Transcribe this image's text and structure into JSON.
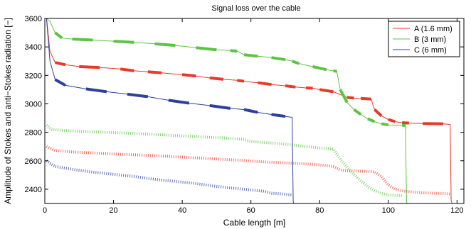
{
  "chart_data": {
    "type": "line",
    "title": "Signal loss over the cable",
    "xlabel": "Cable length [m]",
    "ylabel": "Amplitude of Stokes and anti−Stokes radiation [−]",
    "xlim": [
      0,
      122
    ],
    "ylim": [
      2300,
      3600
    ],
    "xticks": [
      0,
      20,
      40,
      60,
      80,
      100,
      120
    ],
    "yticks": [
      2400,
      2600,
      2800,
      3000,
      3200,
      3400,
      3600
    ],
    "grid": false,
    "legend": "top-right",
    "series": [
      {
        "name": "A (1.6 mm)",
        "color": "#e8392a",
        "stokes": [
          [
            0.5,
            3600
          ],
          [
            1.5,
            3370
          ],
          [
            3,
            3290
          ],
          [
            6,
            3275
          ],
          [
            10,
            3262
          ],
          [
            16,
            3255
          ],
          [
            22,
            3245
          ],
          [
            26,
            3232
          ],
          [
            30,
            3225
          ],
          [
            34,
            3218
          ],
          [
            40,
            3205
          ],
          [
            44,
            3195
          ],
          [
            48,
            3182
          ],
          [
            52,
            3172
          ],
          [
            56,
            3165
          ],
          [
            58,
            3158
          ],
          [
            62,
            3148
          ],
          [
            66,
            3136
          ],
          [
            70,
            3127
          ],
          [
            73,
            3118
          ],
          [
            76,
            3112
          ],
          [
            78,
            3110
          ],
          [
            80,
            3100
          ],
          [
            84,
            3085
          ],
          [
            88,
            3045
          ],
          [
            90,
            3040
          ],
          [
            92,
            3038
          ],
          [
            95,
            3033
          ],
          [
            96,
            2960
          ],
          [
            98,
            2915
          ],
          [
            100,
            2890
          ],
          [
            102,
            2875
          ],
          [
            104,
            2868
          ],
          [
            106,
            2865
          ],
          [
            110,
            2862
          ],
          [
            116,
            2860
          ],
          [
            118,
            2855
          ],
          [
            118.3,
            2320
          ],
          [
            118.6,
            2300
          ]
        ],
        "anti_stokes": [
          [
            0.5,
            2700
          ],
          [
            3,
            2672
          ],
          [
            8,
            2662
          ],
          [
            14,
            2655
          ],
          [
            22,
            2645
          ],
          [
            30,
            2638
          ],
          [
            38,
            2628
          ],
          [
            46,
            2618
          ],
          [
            52,
            2610
          ],
          [
            58,
            2602
          ],
          [
            64,
            2592
          ],
          [
            70,
            2585
          ],
          [
            76,
            2578
          ],
          [
            80,
            2572
          ],
          [
            84,
            2560
          ],
          [
            86,
            2535
          ],
          [
            88,
            2530
          ],
          [
            92,
            2527
          ],
          [
            96,
            2522
          ],
          [
            98,
            2490
          ],
          [
            100,
            2430
          ],
          [
            102,
            2400
          ],
          [
            105,
            2385
          ],
          [
            110,
            2375
          ],
          [
            116,
            2370
          ],
          [
            118,
            2366
          ]
        ]
      },
      {
        "name": "B (3 mm)",
        "color": "#5cc443",
        "stokes": [
          [
            0.5,
            3600
          ],
          [
            1.5,
            3580
          ],
          [
            3,
            3500
          ],
          [
            5,
            3462
          ],
          [
            8,
            3455
          ],
          [
            14,
            3448
          ],
          [
            20,
            3440
          ],
          [
            26,
            3432
          ],
          [
            32,
            3422
          ],
          [
            38,
            3410
          ],
          [
            44,
            3395
          ],
          [
            50,
            3380
          ],
          [
            54,
            3375
          ],
          [
            56,
            3370
          ],
          [
            58,
            3345
          ],
          [
            62,
            3335
          ],
          [
            66,
            3325
          ],
          [
            70,
            3310
          ],
          [
            72,
            3300
          ],
          [
            74,
            3283
          ],
          [
            78,
            3262
          ],
          [
            82,
            3240
          ],
          [
            84,
            3232
          ],
          [
            85,
            3228
          ],
          [
            86,
            3100
          ],
          [
            88,
            3010
          ],
          [
            90,
            2960
          ],
          [
            92,
            2925
          ],
          [
            94,
            2895
          ],
          [
            96,
            2875
          ],
          [
            98,
            2860
          ],
          [
            100,
            2852
          ],
          [
            104,
            2850
          ],
          [
            105,
            2848
          ],
          [
            105.3,
            2310
          ],
          [
            105.6,
            2300
          ]
        ],
        "anti_stokes": [
          [
            0.5,
            2850
          ],
          [
            2,
            2820
          ],
          [
            6,
            2812
          ],
          [
            12,
            2805
          ],
          [
            20,
            2798
          ],
          [
            28,
            2790
          ],
          [
            36,
            2780
          ],
          [
            44,
            2770
          ],
          [
            52,
            2760
          ],
          [
            58,
            2750
          ],
          [
            60,
            2735
          ],
          [
            66,
            2725
          ],
          [
            72,
            2712
          ],
          [
            76,
            2700
          ],
          [
            80,
            2690
          ],
          [
            84,
            2682
          ],
          [
            86,
            2612
          ],
          [
            88,
            2555
          ],
          [
            90,
            2505
          ],
          [
            92,
            2460
          ],
          [
            94,
            2420
          ],
          [
            96,
            2390
          ],
          [
            98,
            2370
          ],
          [
            100,
            2360
          ],
          [
            104,
            2355
          ]
        ]
      },
      {
        "name": "C (6 mm)",
        "color": "#2e3f9e",
        "stokes": [
          [
            0.5,
            3600
          ],
          [
            1.5,
            3300
          ],
          [
            3,
            3170
          ],
          [
            6,
            3130
          ],
          [
            12,
            3105
          ],
          [
            18,
            3085
          ],
          [
            24,
            3068
          ],
          [
            30,
            3050
          ],
          [
            36,
            3025
          ],
          [
            42,
            3005
          ],
          [
            48,
            2988
          ],
          [
            54,
            2968
          ],
          [
            58,
            2960
          ],
          [
            62,
            2940
          ],
          [
            66,
            2925
          ],
          [
            70,
            2912
          ],
          [
            72,
            2905
          ],
          [
            72.3,
            2310
          ],
          [
            72.6,
            2300
          ]
        ],
        "anti_stokes": [
          [
            0.5,
            2600
          ],
          [
            3,
            2560
          ],
          [
            8,
            2540
          ],
          [
            14,
            2520
          ],
          [
            20,
            2505
          ],
          [
            26,
            2490
          ],
          [
            32,
            2470
          ],
          [
            38,
            2455
          ],
          [
            44,
            2440
          ],
          [
            50,
            2420
          ],
          [
            56,
            2405
          ],
          [
            60,
            2395
          ],
          [
            64,
            2385
          ],
          [
            66,
            2372
          ],
          [
            70,
            2365
          ],
          [
            72,
            2360
          ]
        ]
      }
    ]
  }
}
